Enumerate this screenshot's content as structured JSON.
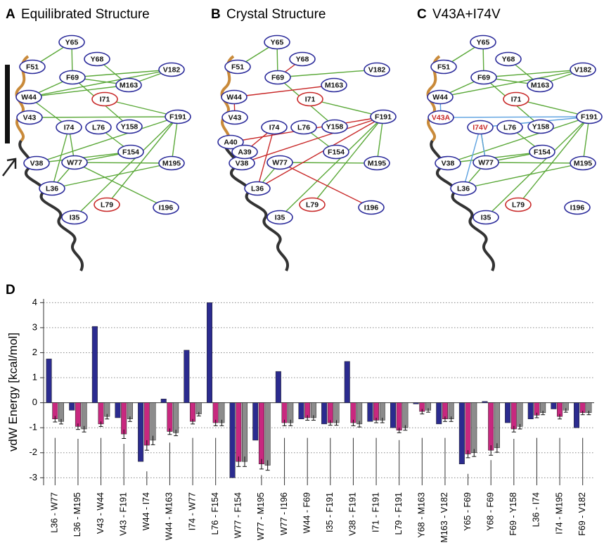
{
  "panels": [
    {
      "label": "A",
      "title": "Equilibrated Structure",
      "nodes": [
        "Y65",
        "F51",
        "Y68",
        "F69",
        "V182",
        "M163",
        "W44",
        "I71",
        "V43",
        "F191",
        "I74",
        "L76",
        "Y158",
        "F154",
        "V38",
        "W77",
        "M195",
        "L36",
        "L79",
        "I196",
        "I35"
      ]
    },
    {
      "label": "B",
      "title": "Crystal Structure",
      "nodes": [
        "Y65",
        "F51",
        "Y68",
        "F69",
        "V182",
        "M163",
        "W44",
        "I71",
        "V43",
        "F191",
        "I74",
        "L76",
        "Y158",
        "F154",
        "V38",
        "W77",
        "M195",
        "L36",
        "L79",
        "I196",
        "I35",
        "A40",
        "A39"
      ]
    },
    {
      "label": "C",
      "title": "V43A+I74V",
      "nodes": [
        "Y65",
        "F51",
        "Y68",
        "F69",
        "V182",
        "M163",
        "W44",
        "I71",
        "V43A",
        "F191",
        "I74V",
        "L76",
        "Y158",
        "F154",
        "V38",
        "W77",
        "M195",
        "L36",
        "L79",
        "I196",
        "I35"
      ]
    }
  ],
  "chart_data": {
    "type": "bar",
    "panel_label": "D",
    "y_label": "vdW Energy [kcal/mol]",
    "categories": [
      "L36 - W77",
      "L36 - M195",
      "V43 - W44",
      "V43 - F191",
      "W44 - I74",
      "W44 - M163",
      "I74 - W77",
      "L76 - F154",
      "W77 - F154",
      "W77 - M195",
      "W77 - I196",
      "W44 - F69",
      "I35 - F191",
      "V38 - F191",
      "I71 - F191",
      "L79 - F191",
      "Y68 - M163",
      "M163 - V182",
      "Y65 - F69",
      "Y68 - F69",
      "F69 - Y158",
      "L36 - I74",
      "I74 - M195",
      "F69 - V182"
    ],
    "series": [
      {
        "color": "#2b2b8f",
        "values": [
          1.75,
          -0.3,
          3.05,
          -0.6,
          -2.35,
          0.15,
          2.1,
          4.0,
          -3.0,
          -1.5,
          1.25,
          -0.65,
          -0.85,
          1.65,
          -0.75,
          -1.0,
          -0.05,
          -0.85,
          -2.45,
          0.05,
          -0.8,
          -0.65,
          -0.25,
          -1.0
        ]
      },
      {
        "color": "#c8287f",
        "values": [
          -0.65,
          -0.95,
          -0.85,
          -1.25,
          -1.7,
          -1.15,
          -0.75,
          -0.8,
          -2.35,
          -2.45,
          -0.8,
          -0.6,
          -0.8,
          -0.8,
          -0.7,
          -1.1,
          -0.35,
          -0.65,
          -2.05,
          -1.9,
          -1.05,
          -0.5,
          -0.55,
          -0.4
        ],
        "errors": [
          0.12,
          0.12,
          0.1,
          0.18,
          0.2,
          0.12,
          0.1,
          0.12,
          0.2,
          0.2,
          0.12,
          0.1,
          0.1,
          0.12,
          0.1,
          0.1,
          0.1,
          0.1,
          0.15,
          0.2,
          0.12,
          0.1,
          0.1,
          0.08
        ]
      },
      {
        "color": "#8c8c8c",
        "values": [
          -0.75,
          -1.05,
          -0.55,
          -0.65,
          -1.5,
          -1.2,
          -0.45,
          -0.8,
          -2.35,
          -2.5,
          -0.8,
          -0.6,
          -0.8,
          -0.85,
          -0.7,
          -1.0,
          -0.3,
          -0.65,
          -2.0,
          -1.8,
          -0.95,
          -0.4,
          -0.3,
          -0.4
        ],
        "errors": [
          0.1,
          0.12,
          0.1,
          0.1,
          0.18,
          0.12,
          0.08,
          0.12,
          0.2,
          0.2,
          0.12,
          0.1,
          0.1,
          0.12,
          0.1,
          0.1,
          0.08,
          0.1,
          0.15,
          0.18,
          0.1,
          0.08,
          0.08,
          0.08
        ]
      }
    ],
    "ylim": [
      -3.3,
      4.15
    ],
    "yticks": [
      -3,
      -2,
      -1,
      0,
      1,
      2,
      3,
      4
    ],
    "grid": true
  }
}
